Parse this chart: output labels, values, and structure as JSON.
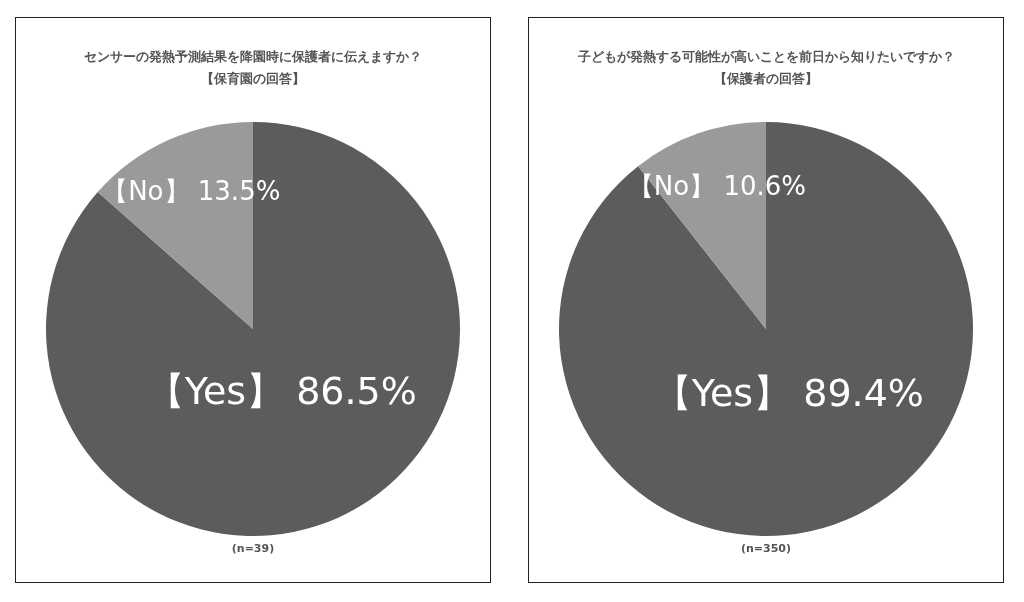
{
  "chart_data": [
    {
      "type": "pie",
      "title": "センサーの発熱予測結果を降園時に保護者に伝えますか？",
      "subtitle": "【保育園の回答】",
      "categories": [
        "【Yes】",
        "【No】"
      ],
      "values": [
        86.5,
        13.5
      ],
      "colors": [
        "#5c5c5c",
        "#9a9a9a"
      ],
      "value_labels": [
        "86.5%",
        "13.5%"
      ],
      "annotations": [
        "(n=39)"
      ]
    },
    {
      "type": "pie",
      "title": "子どもが発熱する可能性が高いことを前日から知りたいですか？",
      "subtitle": "【保護者の回答】",
      "categories": [
        "【Yes】",
        "【No】"
      ],
      "values": [
        89.4,
        10.6
      ],
      "colors": [
        "#5c5c5c",
        "#9a9a9a"
      ],
      "value_labels": [
        "89.4%",
        "10.6%"
      ],
      "annotations": [
        "(n=350)"
      ]
    }
  ]
}
